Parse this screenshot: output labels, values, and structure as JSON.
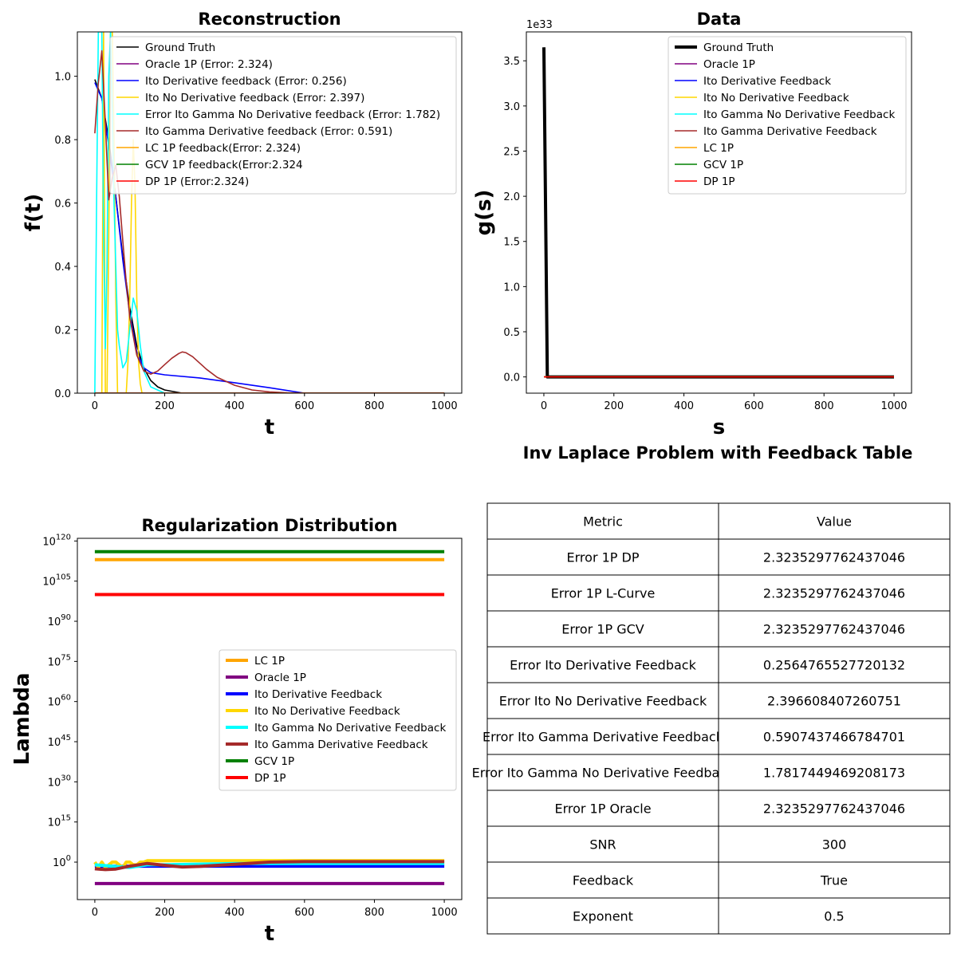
{
  "colors": {
    "ground_truth": "#000000",
    "oracle": "#800080",
    "ito_deriv": "#0000ff",
    "ito_no_deriv": "#ffd700",
    "ito_gamma_no_deriv": "#00ffff",
    "ito_gamma_deriv": "#a52a2a",
    "lc": "#ffa500",
    "gcv": "#008000",
    "dp": "#ff0000"
  },
  "chart_data": [
    {
      "id": "reconstruction",
      "type": "line",
      "title": "Reconstruction",
      "xlabel": "t",
      "ylabel": "f(t)",
      "xlim": [
        -50,
        1050
      ],
      "ylim": [
        0,
        1.14
      ],
      "xticks": [
        "0",
        "200",
        "400",
        "600",
        "800",
        "1000"
      ],
      "yticks": [
        "0.0",
        "0.2",
        "0.4",
        "0.6",
        "0.8",
        "1.0"
      ],
      "legend_position": "top-right",
      "series": [
        {
          "name": "Ground Truth",
          "color": "#000000",
          "x": [
            0,
            20,
            40,
            60,
            80,
            100,
            120,
            140,
            160,
            180,
            200,
            250,
            300,
            400,
            600,
            1000
          ],
          "y": [
            0.99,
            0.93,
            0.8,
            0.62,
            0.43,
            0.27,
            0.15,
            0.08,
            0.04,
            0.02,
            0.01,
            0.0,
            0.0,
            0.0,
            0.0,
            0.0
          ]
        },
        {
          "name": "Oracle 1P (Error: 2.324)",
          "color": "#800080",
          "x": [
            0,
            1000
          ],
          "y": [
            0,
            0
          ]
        },
        {
          "name": "Ito Derivative feedback (Error: 0.256)",
          "color": "#0000ff",
          "x": [
            0,
            20,
            40,
            60,
            80,
            100,
            120,
            140,
            160,
            200,
            300,
            400,
            500,
            600,
            700,
            1000
          ],
          "y": [
            0.98,
            0.93,
            0.78,
            0.62,
            0.42,
            0.25,
            0.13,
            0.08,
            0.065,
            0.058,
            0.048,
            0.033,
            0.017,
            0.0,
            0.0,
            0.0
          ]
        },
        {
          "name": "Ito No Derivative feedback (Error: 2.397)",
          "color": "#ffd700",
          "x": [
            0,
            10,
            20,
            25,
            30,
            35,
            40,
            45,
            50,
            55,
            60,
            65,
            70,
            75,
            80,
            85,
            90,
            95,
            100,
            105,
            110,
            115,
            120,
            125,
            130,
            135,
            140,
            160,
            200,
            1000
          ],
          "y": [
            0.0,
            0.0,
            0.0,
            1.14,
            0.0,
            0.0,
            0.5,
            1.14,
            1.14,
            0.8,
            0.3,
            0.0,
            0.0,
            0.0,
            0.0,
            0.0,
            0.0,
            0.1,
            0.3,
            0.6,
            0.8,
            0.65,
            0.3,
            0.1,
            0.03,
            0.0,
            0.0,
            0.0,
            0.0,
            0.0
          ]
        },
        {
          "name": "Error Ito Gamma No Derivative feedback (Error: 1.782)",
          "color": "#00ffff",
          "x": [
            0,
            5,
            10,
            15,
            20,
            25,
            30,
            35,
            40,
            45,
            50,
            55,
            60,
            65,
            70,
            80,
            90,
            100,
            110,
            120,
            130,
            140,
            160,
            200,
            1000
          ],
          "y": [
            0.0,
            0.6,
            1.14,
            1.14,
            1.14,
            0.5,
            0.14,
            0.4,
            1.0,
            1.14,
            0.9,
            0.6,
            0.4,
            0.2,
            0.15,
            0.08,
            0.1,
            0.2,
            0.3,
            0.26,
            0.15,
            0.07,
            0.02,
            0.0,
            0.0
          ]
        },
        {
          "name": "Ito Gamma Derivative feedback (Error: 0.591)",
          "color": "#a52a2a",
          "x": [
            0,
            10,
            20,
            30,
            40,
            50,
            60,
            70,
            80,
            90,
            100,
            120,
            140,
            160,
            180,
            200,
            220,
            240,
            250,
            260,
            280,
            300,
            320,
            350,
            400,
            450,
            500,
            550,
            600,
            650,
            700,
            1000
          ],
          "y": [
            0.82,
            0.98,
            1.08,
            0.85,
            0.61,
            0.68,
            0.72,
            0.62,
            0.48,
            0.35,
            0.24,
            0.12,
            0.07,
            0.06,
            0.07,
            0.09,
            0.11,
            0.125,
            0.13,
            0.128,
            0.115,
            0.095,
            0.075,
            0.05,
            0.025,
            0.01,
            0.004,
            0.001,
            0.0,
            0.0,
            0.0,
            0.0
          ]
        },
        {
          "name": "LC 1P feedback(Error: 2.324)",
          "color": "#ffa500",
          "x": [
            0,
            1000
          ],
          "y": [
            0,
            0
          ]
        },
        {
          "name": "GCV 1P feedback(Error:2.324",
          "color": "#008000",
          "x": [
            0,
            1000
          ],
          "y": [
            0,
            0
          ]
        },
        {
          "name": "DP 1P (Error:2.324)",
          "color": "#ff0000",
          "x": [
            0,
            1000
          ],
          "y": [
            0,
            0
          ]
        }
      ]
    },
    {
      "id": "data",
      "type": "line",
      "title": "Data",
      "xlabel": "s",
      "ylabel": "g(s)",
      "offset_text": "1e33",
      "xlim": [
        -50,
        1050
      ],
      "ylim": [
        -0.18,
        3.82
      ],
      "xticks": [
        "0",
        "200",
        "400",
        "600",
        "800",
        "1000"
      ],
      "yticks": [
        "0.0",
        "0.5",
        "1.0",
        "1.5",
        "2.0",
        "2.5",
        "3.0",
        "3.5"
      ],
      "legend_position": "top-right",
      "series": [
        {
          "name": "Ground Truth",
          "color": "#000000",
          "width": 4,
          "x": [
            0,
            10,
            20,
            1000
          ],
          "y": [
            3.65,
            0.0,
            0.0,
            0.0
          ]
        },
        {
          "name": "Oracle 1P",
          "color": "#800080",
          "x": [
            0,
            1000
          ],
          "y": [
            0,
            0
          ]
        },
        {
          "name": "Ito Derivative Feedback",
          "color": "#0000ff",
          "x": [
            0,
            1000
          ],
          "y": [
            0,
            0
          ]
        },
        {
          "name": "Ito No Derivative Feedback",
          "color": "#ffd700",
          "x": [
            0,
            1000
          ],
          "y": [
            0,
            0
          ]
        },
        {
          "name": "Ito Gamma No Derivative Feedback",
          "color": "#00ffff",
          "x": [
            0,
            1000
          ],
          "y": [
            0,
            0
          ]
        },
        {
          "name": "Ito Gamma Derivative Feedback",
          "color": "#a52a2a",
          "x": [
            0,
            1000
          ],
          "y": [
            0,
            0
          ]
        },
        {
          "name": "LC 1P",
          "color": "#ffa500",
          "x": [
            0,
            1000
          ],
          "y": [
            0,
            0
          ]
        },
        {
          "name": "GCV 1P",
          "color": "#008000",
          "x": [
            0,
            1000
          ],
          "y": [
            0,
            0
          ]
        },
        {
          "name": "DP 1P",
          "color": "#ff0000",
          "x": [
            0,
            1000
          ],
          "y": [
            0,
            0
          ]
        }
      ]
    },
    {
      "id": "regularization",
      "type": "line",
      "title": "Regularization Distribution",
      "xlabel": "t",
      "ylabel": "Lambda",
      "yscale": "log",
      "xlim": [
        -50,
        1050
      ],
      "ylim_log10": [
        -14,
        121
      ],
      "xticks": [
        "0",
        "200",
        "400",
        "600",
        "800",
        "1000"
      ],
      "yticks": [
        {
          "base": "10",
          "exp": "0"
        },
        {
          "base": "10",
          "exp": "15"
        },
        {
          "base": "10",
          "exp": "30"
        },
        {
          "base": "10",
          "exp": "45"
        },
        {
          "base": "10",
          "exp": "60"
        },
        {
          "base": "10",
          "exp": "75"
        },
        {
          "base": "10",
          "exp": "90"
        },
        {
          "base": "10",
          "exp": "105"
        },
        {
          "base": "10",
          "exp": "120"
        }
      ],
      "legend_position": "center-right",
      "series": [
        {
          "name": "LC 1P",
          "color": "#ffa500",
          "log10_x": [
            0,
            1000
          ],
          "log10_y": [
            113,
            113
          ]
        },
        {
          "name": "Oracle 1P",
          "color": "#800080",
          "log10_x": [
            0,
            1000
          ],
          "log10_y": [
            -8,
            -8
          ]
        },
        {
          "name": "Ito Derivative Feedback",
          "color": "#0000ff",
          "log10_x": [
            0,
            1000
          ],
          "log10_y": [
            -1.5,
            -1.5
          ]
        },
        {
          "name": "Ito No Derivative Feedback",
          "color": "#ffd700",
          "log10_x": [
            0,
            10,
            20,
            30,
            40,
            50,
            60,
            70,
            80,
            90,
            100,
            110,
            120,
            130,
            140,
            150,
            200,
            400,
            600,
            800,
            1000
          ],
          "log10_y": [
            0,
            -2,
            0,
            -2,
            -1,
            0,
            0,
            -1,
            -2,
            0,
            0,
            -1,
            -1,
            0,
            0,
            0.5,
            0.5,
            0.5,
            0.5,
            0.5,
            0.5
          ]
        },
        {
          "name": "Ito Gamma No Derivative Feedback",
          "color": "#00ffff",
          "log10_x": [
            0,
            50,
            100,
            150,
            200,
            400,
            600,
            800,
            1000
          ],
          "log10_y": [
            -1,
            -1.5,
            -2,
            -1,
            -1,
            -0.5,
            -0.5,
            -0.5,
            -0.5
          ]
        },
        {
          "name": "Ito Gamma Derivative Feedback",
          "color": "#a52a2a",
          "log10_x": [
            0,
            30,
            60,
            100,
            150,
            200,
            250,
            300,
            400,
            500,
            600,
            700,
            800,
            1000
          ],
          "log10_y": [
            -2.5,
            -2.8,
            -2.6,
            -1.5,
            -0.5,
            -1.2,
            -1.8,
            -1.6,
            -0.8,
            0,
            0.2,
            0.2,
            0.2,
            0.2
          ]
        },
        {
          "name": "GCV 1P",
          "color": "#008000",
          "log10_x": [
            0,
            1000
          ],
          "log10_y": [
            116,
            116
          ]
        },
        {
          "name": "DP 1P",
          "color": "#ff0000",
          "log10_x": [
            0,
            1000
          ],
          "log10_y": [
            100,
            100
          ]
        }
      ]
    },
    {
      "id": "table",
      "type": "table",
      "title": "Inv Laplace Problem with Feedback Table",
      "columns": [
        "Metric",
        "Value"
      ],
      "rows": [
        [
          "Error 1P DP",
          "2.3235297762437046"
        ],
        [
          "Error 1P L-Curve",
          "2.3235297762437046"
        ],
        [
          "Error 1P GCV",
          "2.3235297762437046"
        ],
        [
          "Error Ito Derivative Feedback",
          "0.2564765527720132"
        ],
        [
          "Error Ito No Derivative Feedback",
          "2.396608407260751"
        ],
        [
          "Error Ito Gamma Derivative Feedback",
          "0.5907437466784701"
        ],
        [
          "Error Ito Gamma No Derivative Feedback",
          "1.7817449469208173"
        ],
        [
          "Error 1P Oracle",
          "2.3235297762437046"
        ],
        [
          "SNR",
          "300"
        ],
        [
          "Feedback",
          "True"
        ],
        [
          "Exponent",
          "0.5"
        ]
      ]
    }
  ]
}
